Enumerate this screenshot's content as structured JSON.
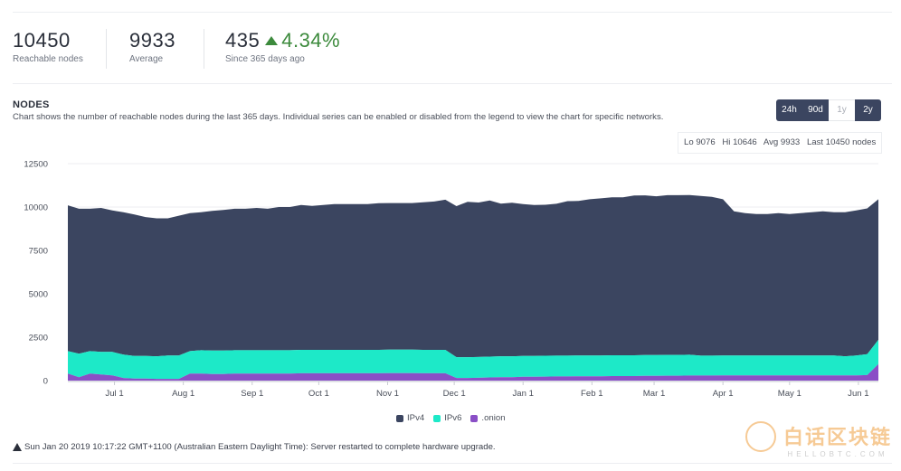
{
  "stats": {
    "reachable": {
      "value": "10450",
      "label": "Reachable nodes"
    },
    "average": {
      "value": "9933",
      "label": "Average"
    },
    "change": {
      "value": "435",
      "percent": "4.34%",
      "label": "Since 365 days ago"
    }
  },
  "section": {
    "title": "NODES",
    "description": "Chart shows the number of reachable nodes during the last 365 days. Individual series can be enabled or disabled from the legend to view the chart for specific networks."
  },
  "ranges": [
    "24h",
    "90d",
    "1y",
    "2y"
  ],
  "summary": {
    "lo": "Lo 9076",
    "hi": "Hi 10646",
    "avg": "Avg 9933",
    "last": "Last 10450 nodes"
  },
  "notice": "Sun Jan 20 2019 10:17:22 GMT+1100 (Australian Eastern Daylight Time): Server restarted to complete hardware upgrade.",
  "watermark": {
    "main": "白话区块链",
    "sub": "HELLOBTC.COM"
  },
  "colors": {
    "ipv4": "#3b4560",
    "ipv6": "#1de9c8",
    "onion": "#8a4fc6",
    "positive": "#3c8a3c"
  },
  "chart_data": {
    "type": "area",
    "stacked": true,
    "title": "",
    "xlabel": "",
    "ylabel": "",
    "ylim": [
      0,
      12500
    ],
    "yticks": [
      0,
      2500,
      5000,
      7500,
      10000,
      12500
    ],
    "xticks": [
      {
        "label": "Jul 1",
        "day": 21
      },
      {
        "label": "Aug 1",
        "day": 52
      },
      {
        "label": "Sep 1",
        "day": 83
      },
      {
        "label": "Oct 1",
        "day": 113
      },
      {
        "label": "Nov 1",
        "day": 144
      },
      {
        "label": "Dec 1",
        "day": 174
      },
      {
        "label": "Jan 1",
        "day": 205
      },
      {
        "label": "Feb 1",
        "day": 236
      },
      {
        "label": "Mar 1",
        "day": 264
      },
      {
        "label": "Apr 1",
        "day": 295
      },
      {
        "label": "May 1",
        "day": 325
      },
      {
        "label": "Jun 1",
        "day": 356
      }
    ],
    "xrange": [
      0,
      365
    ],
    "grid": true,
    "legend_position": "bottom-center",
    "x": [
      0,
      5,
      10,
      15,
      20,
      25,
      30,
      35,
      40,
      45,
      50,
      55,
      60,
      65,
      70,
      75,
      80,
      85,
      90,
      95,
      100,
      105,
      110,
      115,
      120,
      125,
      130,
      135,
      140,
      145,
      150,
      155,
      160,
      165,
      170,
      175,
      180,
      185,
      190,
      195,
      200,
      205,
      210,
      215,
      220,
      225,
      230,
      235,
      240,
      245,
      250,
      255,
      260,
      265,
      270,
      275,
      280,
      285,
      290,
      295,
      300,
      305,
      310,
      315,
      320,
      325,
      330,
      335,
      340,
      345,
      350,
      355,
      360,
      365
    ],
    "series": [
      {
        "name": "IPv4",
        "color": "#3b4560",
        "values": [
          8400,
          8350,
          8200,
          8300,
          8150,
          8200,
          8150,
          8000,
          7950,
          7900,
          8050,
          7950,
          7950,
          8050,
          8100,
          8150,
          8150,
          8200,
          8150,
          8250,
          8250,
          8350,
          8300,
          8350,
          8400,
          8400,
          8400,
          8400,
          8450,
          8450,
          8450,
          8450,
          8500,
          8550,
          8650,
          8700,
          8950,
          8900,
          9000,
          8800,
          8850,
          8750,
          8700,
          8700,
          8750,
          8900,
          8900,
          9000,
          9050,
          9100,
          9100,
          9200,
          9200,
          9150,
          9200,
          9200,
          9200,
          9200,
          9150,
          9000,
          8300,
          8200,
          8150,
          8150,
          8200,
          8150,
          8200,
          8250,
          8300,
          8250,
          8300,
          8350,
          8400,
          8100
        ]
      },
      {
        "name": "IPv6",
        "color": "#1de9c8",
        "values": [
          1300,
          1350,
          1300,
          1300,
          1350,
          1350,
          1300,
          1300,
          1300,
          1350,
          1350,
          1300,
          1350,
          1350,
          1350,
          1350,
          1350,
          1350,
          1350,
          1350,
          1350,
          1350,
          1350,
          1350,
          1350,
          1350,
          1350,
          1350,
          1350,
          1350,
          1350,
          1350,
          1350,
          1350,
          1350,
          1200,
          1200,
          1200,
          1200,
          1200,
          1200,
          1200,
          1200,
          1200,
          1200,
          1200,
          1200,
          1200,
          1200,
          1200,
          1200,
          1200,
          1200,
          1200,
          1200,
          1200,
          1200,
          1150,
          1150,
          1150,
          1150,
          1150,
          1150,
          1150,
          1150,
          1150,
          1150,
          1150,
          1150,
          1150,
          1100,
          1150,
          1200,
          1400
        ]
      },
      {
        "name": ".onion",
        "color": "#8a4fc6",
        "values": [
          400,
          200,
          400,
          350,
          300,
          150,
          120,
          120,
          100,
          100,
          100,
          400,
          400,
          380,
          380,
          400,
          400,
          400,
          400,
          400,
          400,
          420,
          420,
          420,
          420,
          420,
          420,
          420,
          420,
          430,
          430,
          430,
          420,
          420,
          420,
          150,
          150,
          160,
          180,
          200,
          200,
          220,
          220,
          230,
          240,
          240,
          250,
          250,
          250,
          260,
          260,
          260,
          270,
          270,
          280,
          280,
          290,
          290,
          290,
          300,
          300,
          300,
          300,
          300,
          300,
          300,
          300,
          300,
          300,
          300,
          300,
          300,
          320,
          950
        ]
      }
    ]
  }
}
